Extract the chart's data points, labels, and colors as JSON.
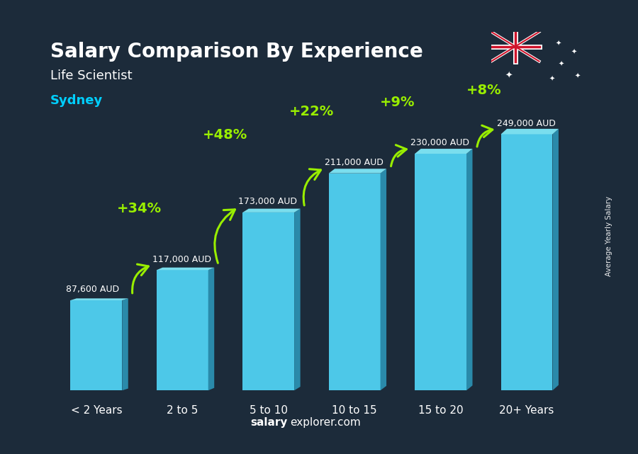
{
  "title": "Salary Comparison By Experience",
  "subtitle": "Life Scientist",
  "city": "Sydney",
  "categories": [
    "< 2 Years",
    "2 to 5",
    "5 to 10",
    "10 to 15",
    "15 to 20",
    "20+ Years"
  ],
  "values": [
    87600,
    117000,
    173000,
    211000,
    230000,
    249000
  ],
  "value_labels": [
    "87,600 AUD",
    "117,000 AUD",
    "173,000 AUD",
    "211,000 AUD",
    "230,000 AUD",
    "249,000 AUD"
  ],
  "pct_labels": [
    "+34%",
    "+48%",
    "+22%",
    "+9%",
    "+8%"
  ],
  "bar_face_color": "#4DC8E8",
  "bar_side_color": "#2A8AAA",
  "bar_top_color": "#7ADEEE",
  "background_color": "#1C2B3A",
  "title_color": "#ffffff",
  "subtitle_color": "#ffffff",
  "city_color": "#00CFFF",
  "label_color": "#ffffff",
  "pct_color": "#99EE00",
  "arrow_color": "#99EE00",
  "footer_bold": "salary",
  "footer_normal": "explorer.com",
  "footer_color": "#ffffff",
  "ylabel": "Average Yearly Salary",
  "ylim": [
    0,
    300000
  ],
  "figsize": [
    9.0,
    6.41
  ],
  "dpi": 100
}
